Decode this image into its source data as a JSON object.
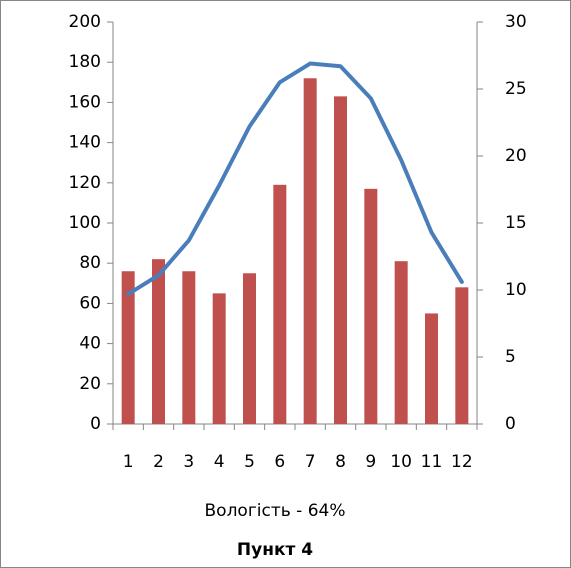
{
  "chart_data": {
    "type": "bar-line",
    "annotation": "Вологість - 64%",
    "title": "Пункт 4",
    "categories": [
      "1",
      "2",
      "3",
      "4",
      "5",
      "6",
      "7",
      "8",
      "9",
      "10",
      "11",
      "12"
    ],
    "series": [
      {
        "type": "bar",
        "color": "#c0504d",
        "values": [
          76,
          82,
          76,
          65,
          75,
          119,
          172,
          163,
          117,
          81,
          55,
          68
        ]
      },
      {
        "type": "line",
        "axis": "y2",
        "color": "#4a7ebb",
        "values": [
          9.7,
          11.1,
          13.7,
          17.8,
          22.2,
          25.5,
          26.9,
          26.7,
          24.3,
          19.7,
          14.3,
          10.6
        ]
      }
    ],
    "ylim": [
      0,
      200
    ],
    "yticks": [
      0,
      20,
      40,
      60,
      80,
      100,
      120,
      140,
      160,
      180,
      200
    ],
    "y2lim": [
      0,
      30
    ],
    "y2ticks": [
      0,
      5,
      10,
      15,
      20,
      25,
      30
    ],
    "grid": false
  }
}
